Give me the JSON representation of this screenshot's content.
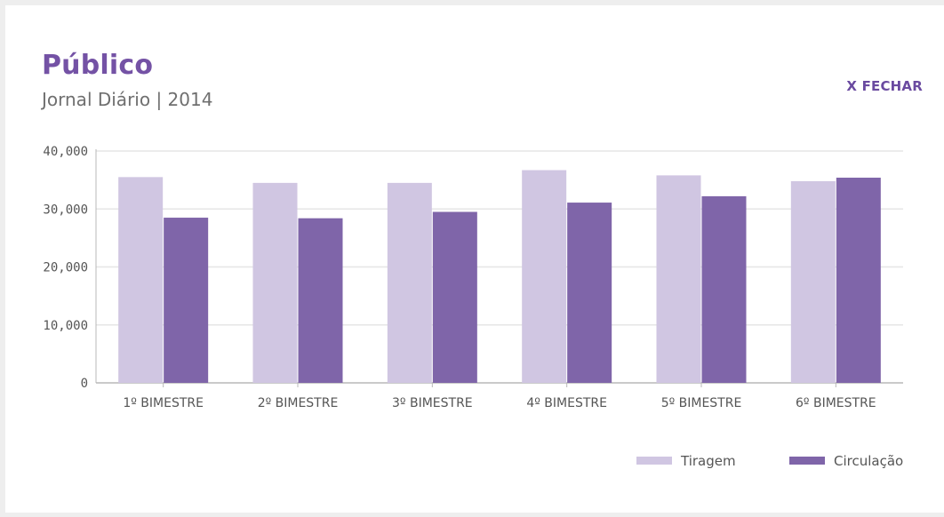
{
  "header": {
    "title": "Público",
    "subtitle": "Jornal Diário | 2014",
    "close_label": "X FECHAR"
  },
  "colors": {
    "accent": "#7452a5",
    "tiragem": "#d0c6e2",
    "circulacao": "#7f65a9",
    "grid": "#e6e6e6",
    "axis": "#b8b8b8"
  },
  "chart_data": {
    "type": "bar",
    "title": "Público",
    "subtitle": "Jornal Diário | 2014",
    "categories": [
      "1º BIMESTRE",
      "2º BIMESTRE",
      "3º BIMESTRE",
      "4º BIMESTRE",
      "5º BIMESTRE",
      "6º BIMESTRE"
    ],
    "series": [
      {
        "name": "Tiragem",
        "color": "#d0c6e2",
        "values": [
          35500,
          34500,
          34500,
          36700,
          35800,
          34800
        ]
      },
      {
        "name": "Circulação",
        "color": "#7f65a9",
        "values": [
          28500,
          28400,
          29500,
          31100,
          32200,
          35400
        ]
      }
    ],
    "ylim": [
      0,
      40000
    ],
    "yticks": [
      0,
      10000,
      20000,
      30000,
      40000
    ],
    "ytick_labels": [
      "0",
      "10,000",
      "20,000",
      "30,000",
      "40,000"
    ],
    "grid": true,
    "legend_position": "bottom-right"
  }
}
